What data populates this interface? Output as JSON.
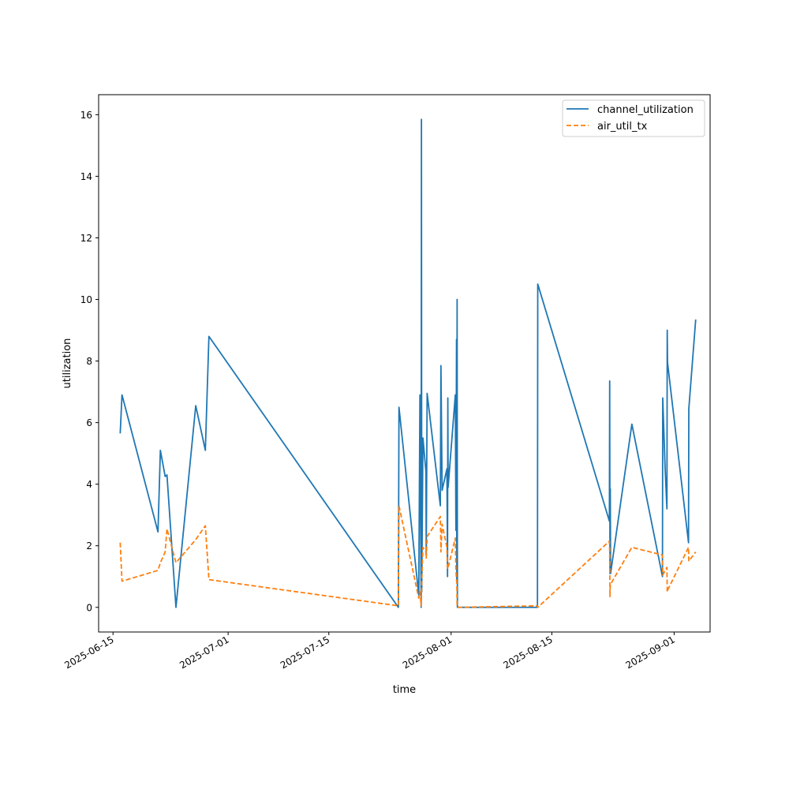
{
  "chart_data": {
    "type": "line",
    "title": "",
    "xlabel": "time",
    "ylabel": "utilization",
    "x_type": "date",
    "xlim": [
      "2025-06-13",
      "2025-09-06"
    ],
    "ylim": [
      -0.8,
      16.65
    ],
    "x_ticks": [
      "2025-06-15",
      "2025-07-01",
      "2025-07-15",
      "2025-08-01",
      "2025-08-15",
      "2025-09-01"
    ],
    "y_ticks": [
      0,
      2,
      4,
      6,
      8,
      10,
      12,
      14,
      16
    ],
    "grid": false,
    "legend_position": "top-right",
    "series": [
      {
        "name": "channel_utilization",
        "color": "#1f77b4",
        "dash": "solid",
        "points": [
          [
            "2025-06-16 00:00",
            5.65
          ],
          [
            "2025-06-16 06:00",
            6.9
          ],
          [
            "2025-06-21 06:00",
            2.45
          ],
          [
            "2025-06-21 14:00",
            5.1
          ],
          [
            "2025-06-22 06:00",
            4.25
          ],
          [
            "2025-06-22 12:00",
            4.3
          ],
          [
            "2025-06-23 18:00",
            0.0
          ],
          [
            "2025-06-26 12:00",
            6.55
          ],
          [
            "2025-06-27 20:00",
            5.1
          ],
          [
            "2025-06-28 08:00",
            8.8
          ],
          [
            "2025-07-24 16:00",
            0.0
          ],
          [
            "2025-07-24 18:00",
            6.5
          ],
          [
            "2025-07-27 12:00",
            0.4
          ],
          [
            "2025-07-27 16:00",
            6.9
          ],
          [
            "2025-07-27 20:00",
            0.0
          ],
          [
            "2025-07-27 21:00",
            15.85
          ],
          [
            "2025-07-27 22:00",
            0.5
          ],
          [
            "2025-07-28 02:00",
            5.5
          ],
          [
            "2025-07-28 12:00",
            4.4
          ],
          [
            "2025-07-28 13:00",
            1.7
          ],
          [
            "2025-07-28 16:00",
            6.95
          ],
          [
            "2025-07-30 12:00",
            3.3
          ],
          [
            "2025-07-30 14:00",
            7.85
          ],
          [
            "2025-07-30 18:00",
            3.8
          ],
          [
            "2025-07-31 10:00",
            4.5
          ],
          [
            "2025-07-31 12:00",
            1.0
          ],
          [
            "2025-07-31 13:00",
            6.8
          ],
          [
            "2025-07-31 14:00",
            3.9
          ],
          [
            "2025-08-01 14:00",
            6.9
          ],
          [
            "2025-08-01 16:00",
            2.5
          ],
          [
            "2025-08-01 18:00",
            8.7
          ],
          [
            "2025-08-01 19:00",
            0.9
          ],
          [
            "2025-08-01 20:00",
            10.0
          ],
          [
            "2025-08-01 21:00",
            0.0
          ],
          [
            "2025-08-13 00:00",
            0.0
          ],
          [
            "2025-08-13 01:00",
            10.5
          ],
          [
            "2025-08-23 00:00",
            2.8
          ],
          [
            "2025-08-23 01:00",
            7.35
          ],
          [
            "2025-08-23 02:00",
            1.1
          ],
          [
            "2025-08-23 03:00",
            3.85
          ],
          [
            "2025-08-23 04:00",
            1.1
          ],
          [
            "2025-08-26 03:00",
            5.95
          ],
          [
            "2025-08-30 09:00",
            1.0
          ],
          [
            "2025-08-30 10:00",
            6.8
          ],
          [
            "2025-08-30 18:00",
            4.5
          ],
          [
            "2025-08-31 00:00",
            3.2
          ],
          [
            "2025-08-31 01:00",
            9.0
          ],
          [
            "2025-08-31 02:00",
            7.95
          ],
          [
            "2025-09-03 00:00",
            2.1
          ],
          [
            "2025-09-03 01:00",
            6.45
          ],
          [
            "2025-09-04 00:00",
            9.35
          ]
        ]
      },
      {
        "name": "air_util_tx",
        "color": "#ff7f0e",
        "dash": "dashed",
        "points": [
          [
            "2025-06-16 00:00",
            2.1
          ],
          [
            "2025-06-16 06:00",
            0.85
          ],
          [
            "2025-06-21 06:00",
            1.2
          ],
          [
            "2025-06-21 14:00",
            1.45
          ],
          [
            "2025-06-22 06:00",
            1.8
          ],
          [
            "2025-06-22 12:00",
            2.55
          ],
          [
            "2025-06-23 18:00",
            1.45
          ],
          [
            "2025-06-26 12:00",
            2.2
          ],
          [
            "2025-06-27 20:00",
            2.65
          ],
          [
            "2025-06-28 08:00",
            0.9
          ],
          [
            "2025-07-24 16:00",
            0.05
          ],
          [
            "2025-07-24 18:00",
            3.3
          ],
          [
            "2025-07-27 12:00",
            0.3
          ],
          [
            "2025-07-27 16:00",
            0.5
          ],
          [
            "2025-07-27 20:00",
            0.05
          ],
          [
            "2025-07-27 21:00",
            0.3
          ],
          [
            "2025-07-27 22:00",
            0.9
          ],
          [
            "2025-07-28 02:00",
            1.95
          ],
          [
            "2025-07-28 12:00",
            1.8
          ],
          [
            "2025-07-28 13:00",
            1.6
          ],
          [
            "2025-07-28 16:00",
            2.3
          ],
          [
            "2025-07-30 12:00",
            2.95
          ],
          [
            "2025-07-30 14:00",
            1.8
          ],
          [
            "2025-07-30 18:00",
            2.7
          ],
          [
            "2025-07-31 10:00",
            1.95
          ],
          [
            "2025-07-31 12:00",
            1.25
          ],
          [
            "2025-07-31 13:00",
            1.3
          ],
          [
            "2025-07-31 14:00",
            1.3
          ],
          [
            "2025-08-01 14:00",
            2.25
          ],
          [
            "2025-08-01 16:00",
            1.2
          ],
          [
            "2025-08-01 18:00",
            0.9
          ],
          [
            "2025-08-01 19:00",
            0.8
          ],
          [
            "2025-08-01 20:00",
            0.05
          ],
          [
            "2025-08-01 21:00",
            0.0
          ],
          [
            "2025-08-13 00:00",
            0.05
          ],
          [
            "2025-08-13 01:00",
            0.0
          ],
          [
            "2025-08-23 00:00",
            2.15
          ],
          [
            "2025-08-23 01:00",
            1.85
          ],
          [
            "2025-08-23 02:00",
            0.35
          ],
          [
            "2025-08-23 03:00",
            0.75
          ],
          [
            "2025-08-23 04:00",
            0.75
          ],
          [
            "2025-08-26 03:00",
            1.95
          ],
          [
            "2025-08-30 09:00",
            1.7
          ],
          [
            "2025-08-30 10:00",
            1.05
          ],
          [
            "2025-08-30 18:00",
            1.2
          ],
          [
            "2025-08-31 00:00",
            1.3
          ],
          [
            "2025-08-31 01:00",
            0.5
          ],
          [
            "2025-08-31 02:00",
            0.55
          ],
          [
            "2025-09-03 00:00",
            1.95
          ],
          [
            "2025-09-03 01:00",
            1.5
          ],
          [
            "2025-09-04 00:00",
            1.8
          ]
        ]
      }
    ]
  }
}
